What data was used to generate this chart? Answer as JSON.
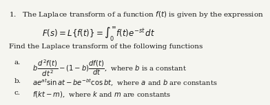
{
  "background_color": "#f5f5f0",
  "text_color": "#1a1a1a",
  "title_line": "1.   The Laplace transform of a function $f(t)$ is given by the expression",
  "formula_line": "$F(s) = L\\{f(t)\\} = \\int_0^{\\infty} f(t)e^{-st}\\,dt$",
  "find_line": "Find the Laplace transform of the following functions",
  "item_a_label": "a.",
  "item_a_text": "$b\\,\\dfrac{d^2 f(t)}{dt^2} - (1-b)\\dfrac{df(t)}{dt}$,  where $b$ is a constant",
  "item_b_label": "b.",
  "item_b_text": "$ae^{at}\\sin at - be^{-bt}\\cos bt$,  where $a$ and $b$ are constants",
  "item_c_label": "c.",
  "item_c_text": "$f(kt - m)$,  where $k$ and $m$ are constants",
  "fontsize_main": 7.5,
  "fontsize_formula": 8.5,
  "fontsize_items": 7.2
}
